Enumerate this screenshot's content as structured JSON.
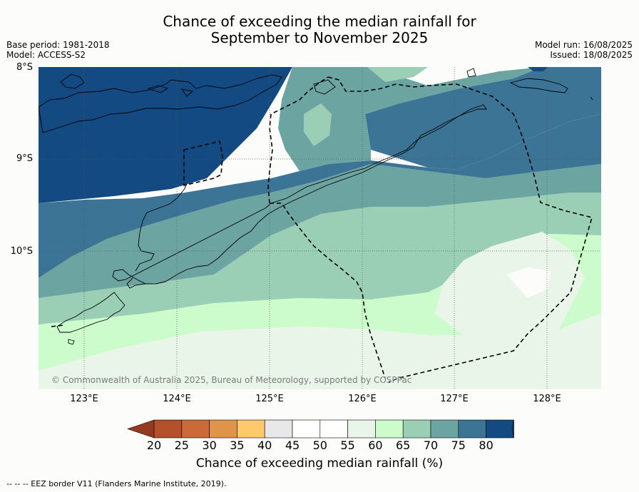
{
  "title_line1": "Chance of exceeding the median rainfall for",
  "title_line2": "September to November 2025",
  "meta_left_1": "Base period: 1981-2018",
  "meta_left_2": "Model: ACCESS-S2",
  "meta_right_1": "Model run: 16/08/2025",
  "meta_right_2": "Issued: 18/08/2025",
  "lat_labels": [
    "8°S",
    "9°S",
    "10°S"
  ],
  "lon_labels": [
    "123°E",
    "124°E",
    "125°E",
    "126°E",
    "127°E",
    "128°E"
  ],
  "copyright": "© Commonwealth of Australia 2025, Bureau of Meteorology, supported by COSPPac",
  "colorbar": {
    "ticks": [
      "20",
      "25",
      "30",
      "35",
      "40",
      "45",
      "50",
      "55",
      "60",
      "65",
      "70",
      "75",
      "80"
    ],
    "colors": [
      "#b4502c",
      "#cb6a36",
      "#e0944a",
      "#fdc96a",
      "#e8e8e8",
      "#ffffff",
      "#ffffff",
      "#eaf5ea",
      "#ccfccc",
      "#9acfb6",
      "#6ca4a2",
      "#3c7496",
      "#134a82"
    ],
    "extend_low_color": "#943a20",
    "extend_high_color": "#104276",
    "label": "Chance of exceeding median rainfall (%)"
  },
  "map": {
    "extent_lon": [
      122.5,
      128.6
    ],
    "extent_lat": [
      -11.5,
      -8.0
    ],
    "grid": true
  },
  "footnote": "--  --  -- EEZ border V11 (Flanders Marine Institute, 2019)."
}
